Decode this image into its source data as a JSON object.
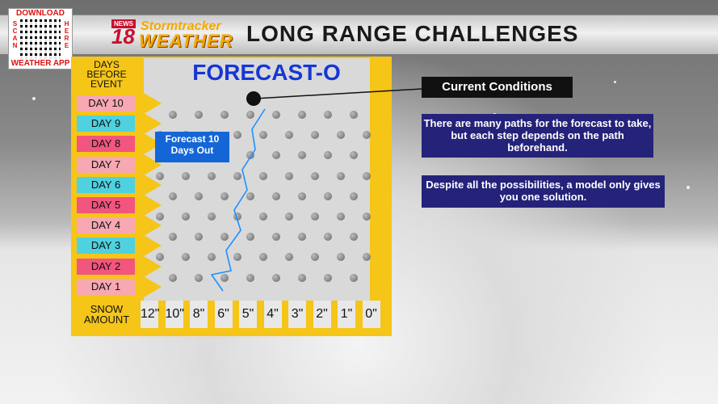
{
  "qr": {
    "top_text": "DOWNLOAD",
    "left_text": "SCAN",
    "right_text": "HERE",
    "bottom_text": "WEATHER APP"
  },
  "header": {
    "logo_news": "NEWS",
    "logo_number": "18",
    "logo_line1": "Stormtracker",
    "logo_line2": "WEATHER",
    "title": "LONG RANGE CHALLENGES"
  },
  "board": {
    "days_label": "DAYS BEFORE EVENT",
    "title": "FORECAST-O",
    "days": [
      {
        "label": "DAY 10",
        "color": "#f7a8b3"
      },
      {
        "label": "DAY 9",
        "color": "#4fd1e0"
      },
      {
        "label": "DAY 8",
        "color": "#f2557e"
      },
      {
        "label": "DAY 7",
        "color": "#f7a8b3"
      },
      {
        "label": "DAY 6",
        "color": "#4fd1e0"
      },
      {
        "label": "DAY 5",
        "color": "#f2557e"
      },
      {
        "label": "DAY 4",
        "color": "#f7a8b3"
      },
      {
        "label": "DAY 3",
        "color": "#4fd1e0"
      },
      {
        "label": "DAY 2",
        "color": "#f2557e"
      },
      {
        "label": "DAY 1",
        "color": "#f7a8b3"
      }
    ],
    "snow_label": "SNOW AMOUNT",
    "bins": [
      "12\"",
      "10\"",
      "8\"",
      "6\"",
      "5\"",
      "4\"",
      "3\"",
      "2\"",
      "1\"",
      "0\""
    ],
    "forecast_callout": "Forecast 10 Days Out"
  },
  "current_conditions": "Current Conditions",
  "info1": "There are many paths for the forecast to take, but each step depends on the path beforehand.",
  "info2": "Despite all the possibilities, a model only gives you one solution."
}
